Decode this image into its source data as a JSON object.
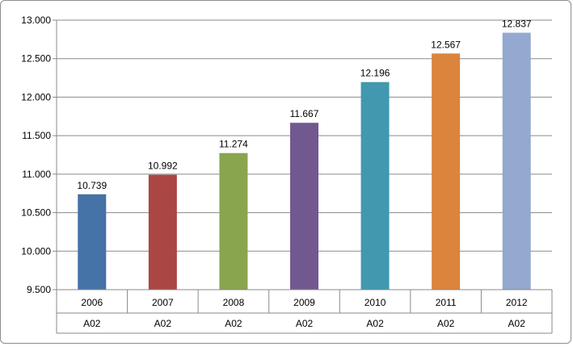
{
  "chart_data": {
    "type": "bar",
    "categories": [
      "2006",
      "2007",
      "2008",
      "2009",
      "2010",
      "2011",
      "2012"
    ],
    "category_group_label": "A02",
    "values": [
      10739,
      10992,
      11274,
      11667,
      12196,
      12567,
      12837
    ],
    "value_labels": [
      "10.739",
      "10.992",
      "11.274",
      "11.667",
      "12.196",
      "12.567",
      "12.837"
    ],
    "y_ticks": [
      9500,
      10000,
      10500,
      11000,
      11500,
      12000,
      12500,
      13000
    ],
    "y_tick_labels": [
      "9.500",
      "10.000",
      "10.500",
      "11.000",
      "11.500",
      "12.000",
      "12.500",
      "13.000"
    ],
    "ylim": [
      9500,
      13000
    ],
    "grid": true,
    "legend": "none",
    "colors": [
      "#4572a7",
      "#aa4643",
      "#89a54e",
      "#71588f",
      "#4198af",
      "#db843d",
      "#93a9cf"
    ],
    "title": "",
    "xlabel": "",
    "ylabel": ""
  }
}
